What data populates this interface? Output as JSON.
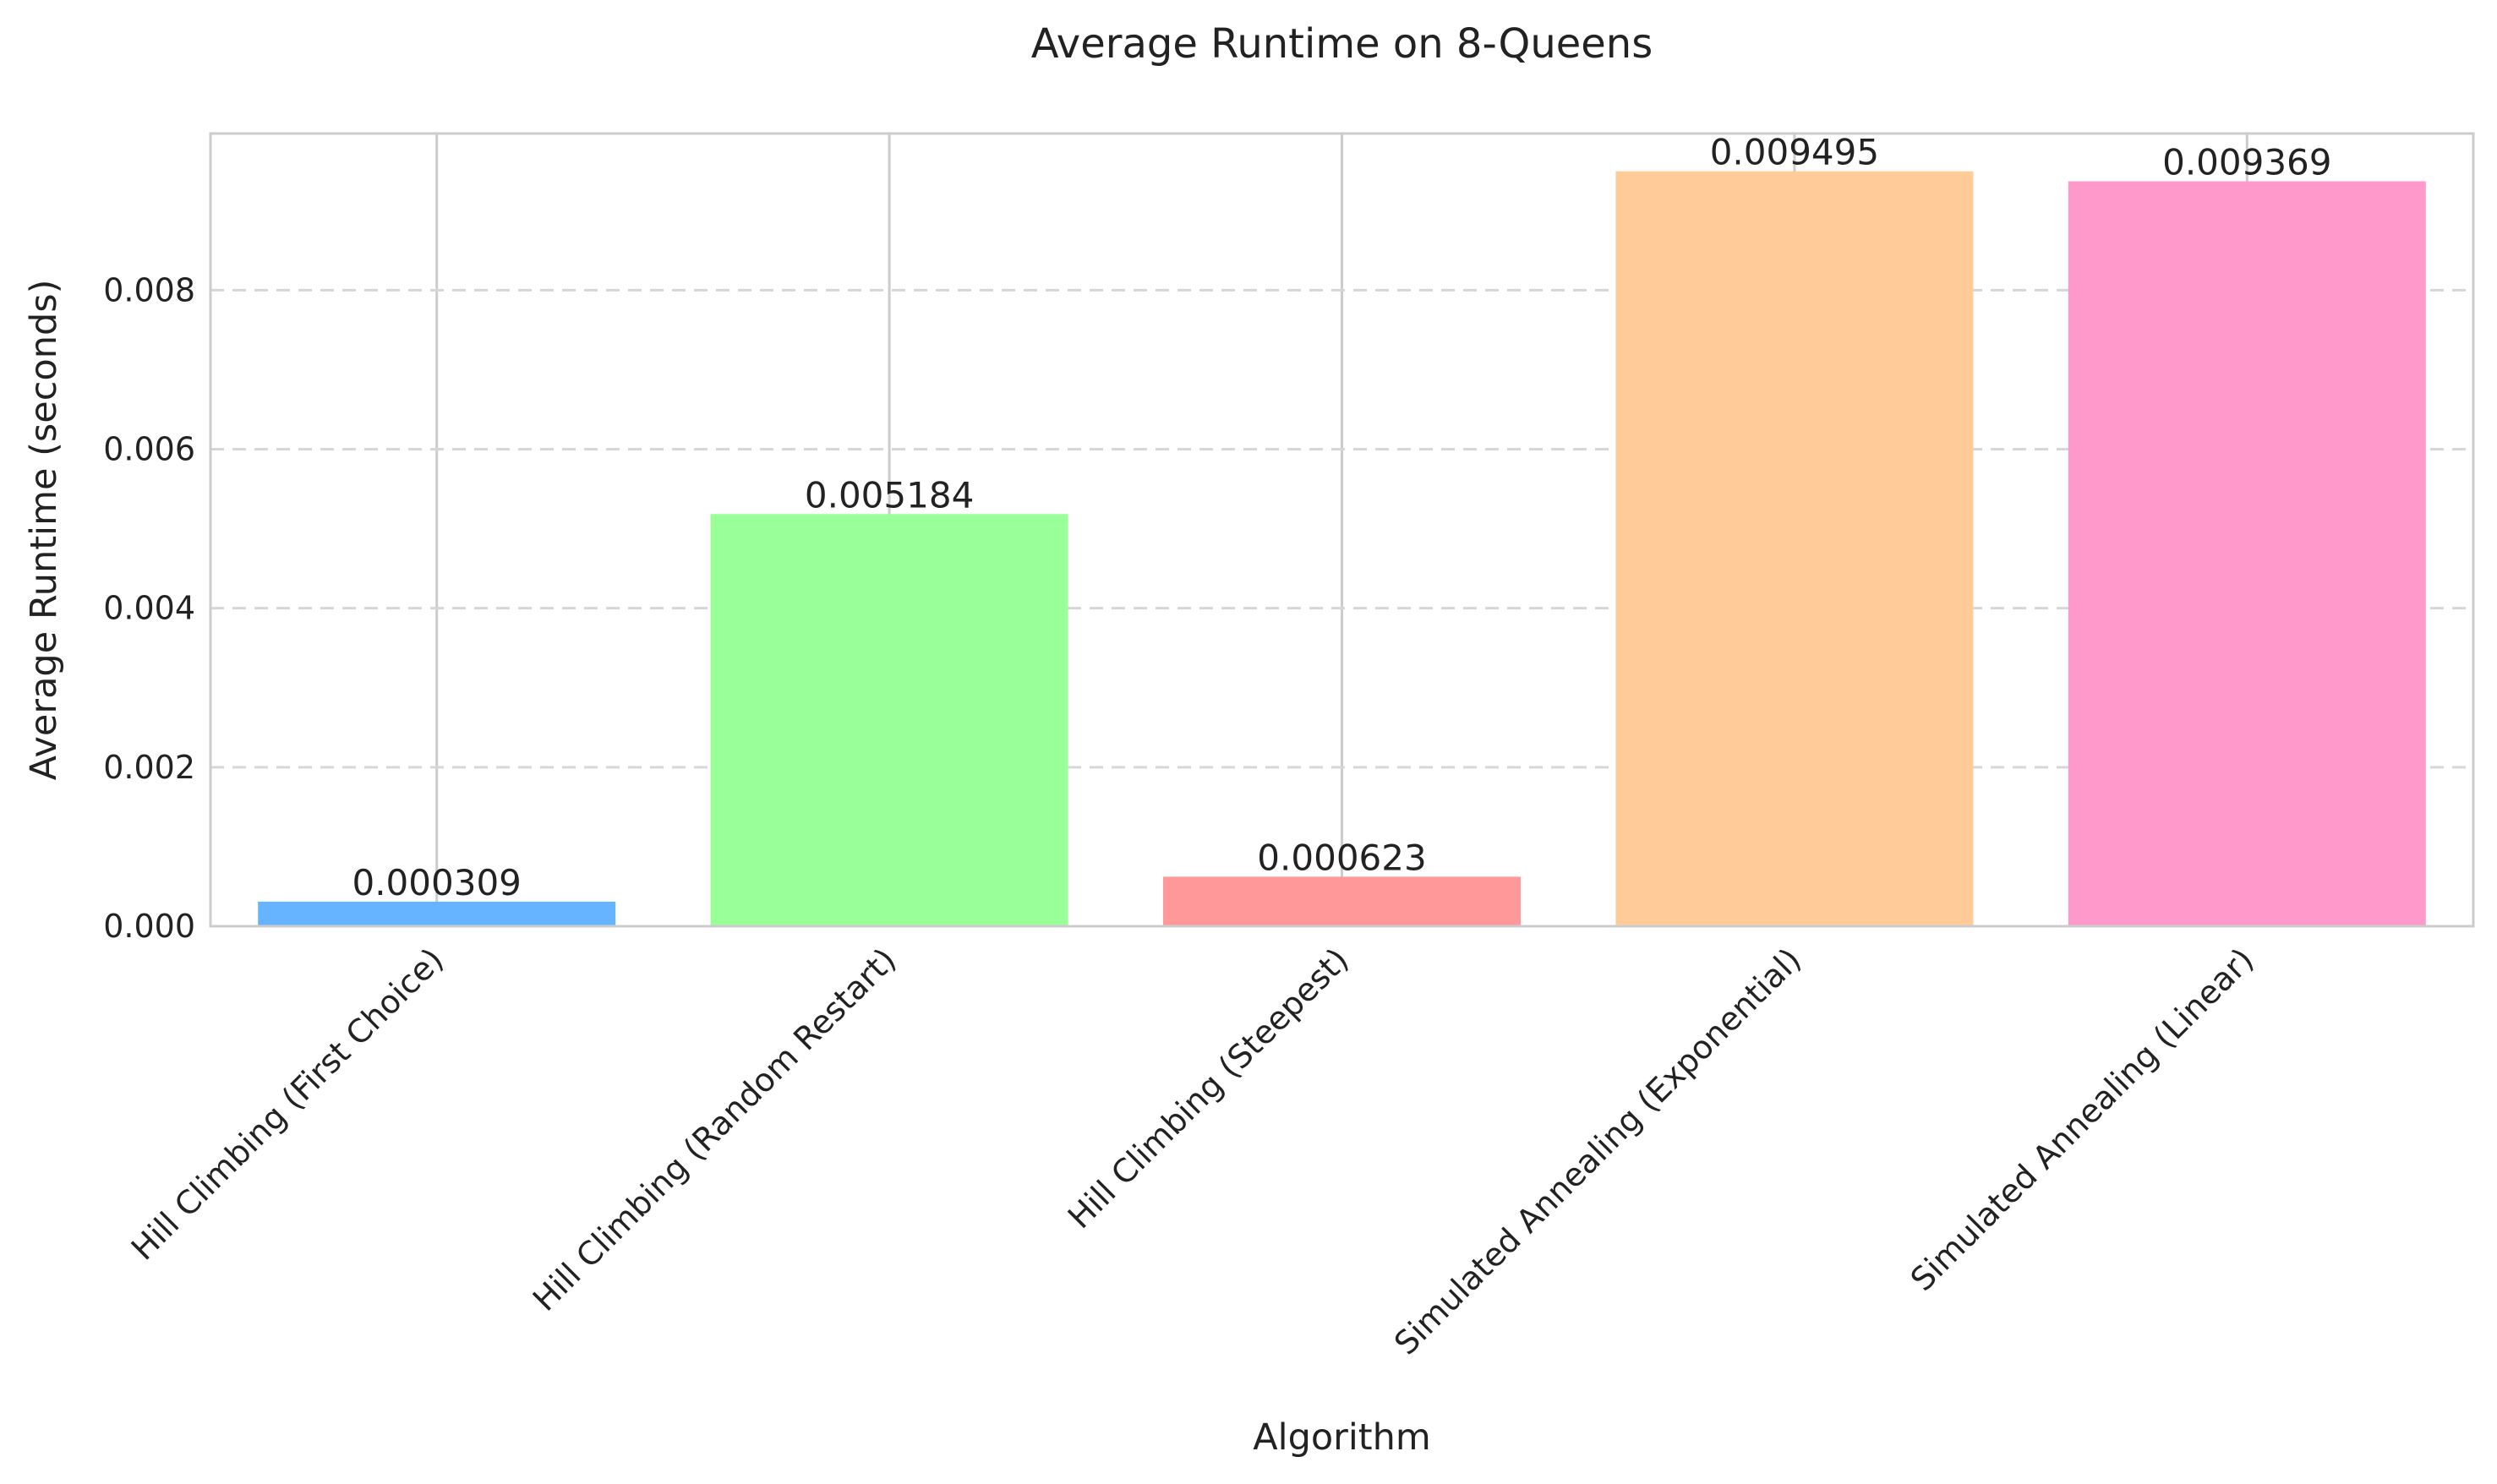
{
  "chart_data": {
    "type": "bar",
    "title": "Average Runtime on 8-Queens",
    "xlabel": "Algorithm",
    "ylabel": "Average Runtime (seconds)",
    "categories": [
      "Hill Climbing (First Choice)",
      "Hill Climbing (Random Restart)",
      "Hill Climbing (Steepest)",
      "Simulated Annealing (Exponential)",
      "Simulated Annealing (Linear)"
    ],
    "values": [
      0.000309,
      0.005184,
      0.000623,
      0.009495,
      0.009369
    ],
    "value_labels": [
      "0.000309",
      "0.005184",
      "0.000623",
      "0.009495",
      "0.009369"
    ],
    "colors": [
      "#66b3ff",
      "#99ff99",
      "#ff9999",
      "#ffcc99",
      "#ff99cc"
    ],
    "ylim": [
      0,
      0.00997
    ],
    "yticks": [
      0.0,
      0.002,
      0.004,
      0.006,
      0.008
    ],
    "ytick_labels": [
      "0.000",
      "0.002",
      "0.004",
      "0.006",
      "0.008"
    ],
    "grid": {
      "y": "dashed",
      "x": "solid"
    },
    "legend": "none"
  }
}
